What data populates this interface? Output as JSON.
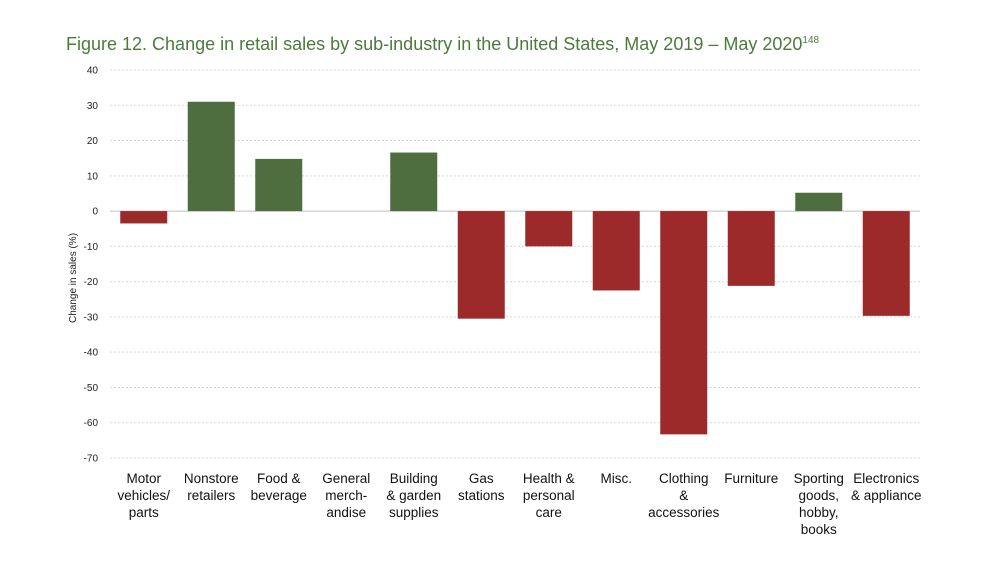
{
  "title": "Figure 12. Change in retail sales by sub-industry in the United States, May 2019 – May 2020",
  "title_ref": "148",
  "chart_data": {
    "type": "bar",
    "title": "Figure 12. Change in retail sales by sub-industry in the United States, May 2019 – May 2020",
    "ylabel": "Change in sales (%)",
    "xlabel": "",
    "ylim": [
      -70,
      40
    ],
    "yticks": [
      40,
      30,
      20,
      10,
      0,
      -10,
      -20,
      -30,
      -40,
      -50,
      -60,
      -70
    ],
    "grid": true,
    "categories": [
      [
        "Motor",
        "vehicles/",
        "parts"
      ],
      [
        "Nonstore",
        "retailers"
      ],
      [
        "Food &",
        "beverage"
      ],
      [
        "General",
        "merch-",
        "andise"
      ],
      [
        "Building",
        "& garden",
        "supplies"
      ],
      [
        "Gas",
        "stations"
      ],
      [
        "Health &",
        "personal",
        "care"
      ],
      [
        "Misc."
      ],
      [
        "Clothing",
        "&",
        "accessories"
      ],
      [
        "Furniture"
      ],
      [
        "Sporting",
        "goods,",
        "hobby,",
        "books"
      ],
      [
        "Electronics",
        "& appliance"
      ]
    ],
    "values": [
      -3.5,
      31,
      14.8,
      0,
      16.6,
      -30.5,
      -10,
      -22.5,
      -63.3,
      -21.2,
      5.2,
      -29.7
    ],
    "colors": {
      "positive": "#4e6e3f",
      "negative": "#9d2a2a"
    }
  }
}
